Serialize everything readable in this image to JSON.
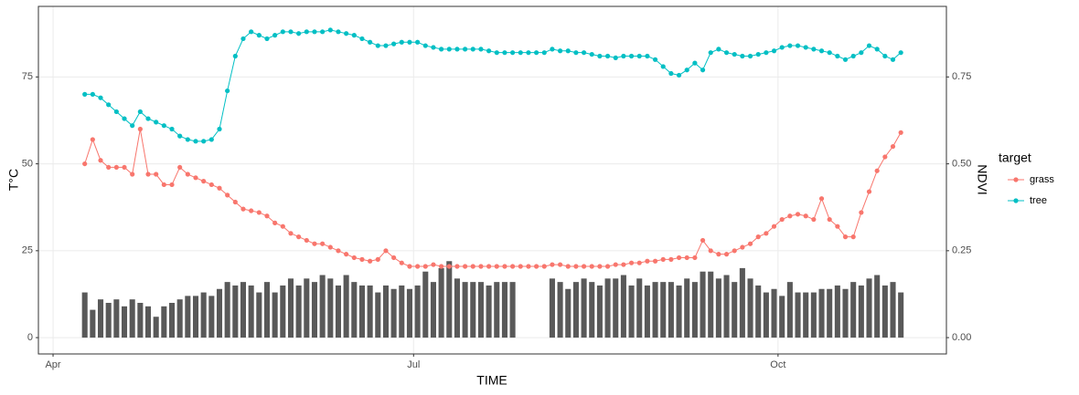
{
  "chart_data": {
    "type": "bar-line",
    "x_label": "TIME",
    "y_label": "T°C",
    "y2_label": "NDVI",
    "legend_title": "target",
    "legend": "right",
    "grid": true,
    "xlim": [
      -3.7,
      225.5
    ],
    "xticks": [
      {
        "value": 0,
        "label": "Apr"
      },
      {
        "value": 91,
        "label": "Jul"
      },
      {
        "value": 183,
        "label": "Oct"
      }
    ],
    "ylim": [
      -4.7,
      95.3
    ],
    "yticks": [
      0,
      25,
      50,
      75
    ],
    "y2lim": [
      -0.047,
      0.953
    ],
    "y2ticks": [
      {
        "value": 0,
        "label": "0.00"
      },
      {
        "value": 0.25,
        "label": "0.25"
      },
      {
        "value": 0.5,
        "label": "0.50"
      },
      {
        "value": 0.75,
        "label": "0.75"
      }
    ],
    "x": [
      8,
      10,
      12,
      14,
      16,
      18,
      20,
      22,
      24,
      26,
      28,
      30,
      32,
      34,
      36,
      38,
      40,
      42,
      44,
      46,
      48,
      50,
      52,
      54,
      56,
      58,
      60,
      62,
      64,
      66,
      68,
      70,
      72,
      74,
      76,
      78,
      80,
      82,
      84,
      86,
      88,
      90,
      92,
      94,
      96,
      98,
      100,
      102,
      104,
      106,
      108,
      110,
      112,
      114,
      116,
      118,
      120,
      122,
      124,
      126,
      128,
      130,
      132,
      134,
      136,
      138,
      140,
      142,
      144,
      146,
      148,
      150,
      152,
      154,
      156,
      158,
      160,
      162,
      164,
      166,
      168,
      170,
      172,
      174,
      176,
      178,
      180,
      182,
      184,
      186,
      188,
      190,
      192,
      194,
      196,
      198,
      200,
      202,
      204,
      206,
      208,
      210,
      212,
      214
    ],
    "bars": {
      "color": "#595959",
      "values": [
        13,
        8,
        11,
        10,
        11,
        9,
        11,
        10,
        9,
        6,
        9,
        10,
        11,
        12,
        12,
        13,
        12,
        14,
        16,
        15,
        16,
        15,
        13,
        16,
        13,
        15,
        17,
        15,
        17,
        16,
        18,
        17,
        15,
        18,
        16,
        15,
        15,
        13,
        15,
        14,
        15,
        14,
        15,
        19,
        16,
        20,
        22,
        17,
        16,
        16,
        16,
        15,
        16,
        16,
        16,
        null,
        null,
        null,
        null,
        17,
        16,
        14,
        16,
        17,
        16,
        15,
        17,
        17,
        18,
        15,
        17,
        15,
        16,
        16,
        16,
        15,
        17,
        16,
        19,
        19,
        17,
        18,
        16,
        20,
        17,
        15,
        13,
        14,
        12,
        16,
        13,
        13,
        13,
        14,
        14,
        15,
        14,
        16,
        15,
        17,
        18,
        15,
        16,
        13
      ]
    },
    "series": [
      {
        "name": "grass",
        "color": "#F8766D",
        "axis": "y2",
        "values": [
          0.5,
          0.57,
          0.51,
          0.49,
          0.49,
          0.49,
          0.47,
          0.6,
          0.47,
          0.47,
          0.44,
          0.44,
          0.49,
          0.47,
          0.46,
          0.45,
          0.44,
          0.43,
          0.41,
          0.39,
          0.37,
          0.365,
          0.36,
          0.35,
          0.33,
          0.32,
          0.3,
          0.29,
          0.28,
          0.27,
          0.27,
          0.26,
          0.25,
          0.24,
          0.23,
          0.225,
          0.22,
          0.225,
          0.25,
          0.23,
          0.215,
          0.205,
          0.205,
          0.205,
          0.21,
          0.205,
          0.205,
          0.205,
          0.205,
          0.205,
          0.205,
          0.205,
          0.205,
          0.205,
          0.205,
          0.205,
          0.205,
          0.205,
          0.205,
          0.21,
          0.21,
          0.205,
          0.205,
          0.205,
          0.205,
          0.205,
          0.205,
          0.21,
          0.21,
          0.215,
          0.215,
          0.22,
          0.22,
          0.225,
          0.225,
          0.23,
          0.23,
          0.23,
          0.28,
          0.25,
          0.24,
          0.24,
          0.25,
          0.26,
          0.27,
          0.29,
          0.3,
          0.32,
          0.34,
          0.35,
          0.355,
          0.35,
          0.34,
          0.4,
          0.34,
          0.32,
          0.29,
          0.29,
          0.36,
          0.42,
          0.48,
          0.52,
          0.55,
          0.59
        ]
      },
      {
        "name": "tree",
        "color": "#00BFC4",
        "axis": "y2",
        "values": [
          0.7,
          0.7,
          0.69,
          0.67,
          0.65,
          0.63,
          0.61,
          0.65,
          0.63,
          0.62,
          0.61,
          0.6,
          0.58,
          0.57,
          0.565,
          0.565,
          0.57,
          0.6,
          0.71,
          0.81,
          0.86,
          0.88,
          0.87,
          0.86,
          0.87,
          0.88,
          0.88,
          0.875,
          0.88,
          0.88,
          0.88,
          0.885,
          0.88,
          0.875,
          0.87,
          0.86,
          0.85,
          0.84,
          0.84,
          0.845,
          0.85,
          0.85,
          0.85,
          0.84,
          0.835,
          0.83,
          0.83,
          0.83,
          0.83,
          0.83,
          0.83,
          0.825,
          0.82,
          0.82,
          0.82,
          0.82,
          0.82,
          0.82,
          0.82,
          0.83,
          0.825,
          0.825,
          0.82,
          0.82,
          0.815,
          0.81,
          0.81,
          0.805,
          0.81,
          0.81,
          0.81,
          0.81,
          0.8,
          0.78,
          0.76,
          0.755,
          0.77,
          0.79,
          0.77,
          0.82,
          0.83,
          0.82,
          0.815,
          0.81,
          0.81,
          0.815,
          0.82,
          0.825,
          0.835,
          0.84,
          0.84,
          0.835,
          0.83,
          0.825,
          0.82,
          0.81,
          0.8,
          0.81,
          0.82,
          0.84,
          0.83,
          0.81,
          0.8,
          0.82
        ]
      }
    ]
  }
}
